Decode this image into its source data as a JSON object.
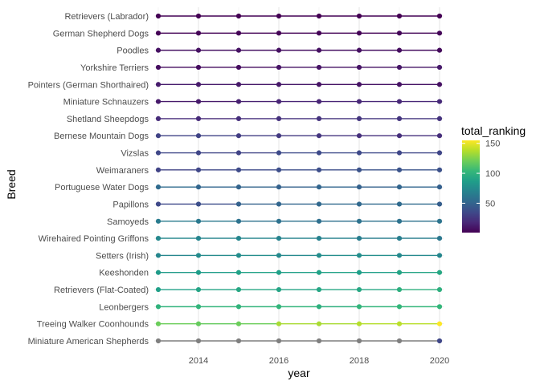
{
  "chart_data": {
    "type": "line",
    "xlabel": "year",
    "ylabel": "Breed",
    "x": [
      2013,
      2014,
      2015,
      2016,
      2017,
      2018,
      2019,
      2020
    ],
    "x_ticks": [
      2014,
      2016,
      2018,
      2020
    ],
    "xlim": [
      2012.9,
      2020.1
    ],
    "grid": true,
    "legend": {
      "title": "total_ranking",
      "placement": "right",
      "range": [
        1,
        155
      ],
      "ticks": [
        50,
        100,
        150
      ],
      "colormap": "viridis",
      "na_color": "#7f7f7f"
    },
    "series": [
      {
        "name": "Retrievers (Labrador)",
        "values": [
          1,
          1,
          1,
          1,
          1,
          1,
          1,
          1
        ]
      },
      {
        "name": "German Shepherd Dogs",
        "values": [
          2,
          2,
          2,
          2,
          2,
          2,
          3,
          3
        ]
      },
      {
        "name": "Poodles",
        "values": [
          8,
          8,
          8,
          7,
          7,
          7,
          6,
          5
        ]
      },
      {
        "name": "Yorkshire Terriers",
        "values": [
          6,
          6,
          6,
          9,
          9,
          9,
          10,
          12
        ]
      },
      {
        "name": "Pointers (German Shorthaired)",
        "values": [
          13,
          12,
          11,
          11,
          9,
          9,
          9,
          8
        ]
      },
      {
        "name": "Miniature Schnauzers",
        "values": [
          12,
          12,
          15,
          17,
          17,
          18,
          18,
          19
        ]
      },
      {
        "name": "Shetland Sheepdogs",
        "values": [
          20,
          19,
          22,
          23,
          24,
          25,
          25,
          24
        ]
      },
      {
        "name": "Bernese Mountain Dogs",
        "values": [
          32,
          32,
          29,
          27,
          25,
          22,
          22,
          21
        ]
      },
      {
        "name": "Vizslas",
        "values": [
          34,
          33,
          32,
          36,
          36,
          35,
          34,
          33
        ]
      },
      {
        "name": "Weimaraners",
        "values": [
          32,
          34,
          36,
          38,
          38,
          40,
          41,
          39
        ]
      },
      {
        "name": "Portuguese Water Dogs",
        "values": [
          54,
          51,
          50,
          49,
          51,
          49,
          51,
          48
        ]
      },
      {
        "name": "Papillons",
        "values": [
          35,
          38,
          49,
          51,
          53,
          53,
          54,
          47
        ]
      },
      {
        "name": "Samoyeds",
        "values": [
          65,
          63,
          59,
          58,
          57,
          59,
          59,
          60
        ]
      },
      {
        "name": "Wirehaired Pointing Griffons",
        "values": [
          73,
          71,
          72,
          70,
          69,
          66,
          67,
          62
        ]
      },
      {
        "name": "Setters (Irish)",
        "values": [
          72,
          75,
          76,
          74,
          76,
          77,
          74,
          72
        ]
      },
      {
        "name": "Keeshonden",
        "values": [
          85,
          86,
          89,
          88,
          89,
          87,
          91,
          93
        ]
      },
      {
        "name": "Retrievers (Flat-Coated)",
        "values": [
          88,
          91,
          93,
          91,
          92,
          93,
          98,
          98
        ]
      },
      {
        "name": "Leonbergers",
        "values": [
          100,
          102,
          101,
          102,
          98,
          102,
          103,
          103
        ]
      },
      {
        "name": "Treeing Walker Coonhounds",
        "values": [
          120,
          118,
          120,
          135,
          135,
          138,
          139,
          155
        ]
      },
      {
        "name": "Miniature American Shepherds",
        "values": [
          null,
          null,
          null,
          null,
          null,
          null,
          null,
          34
        ]
      }
    ]
  }
}
